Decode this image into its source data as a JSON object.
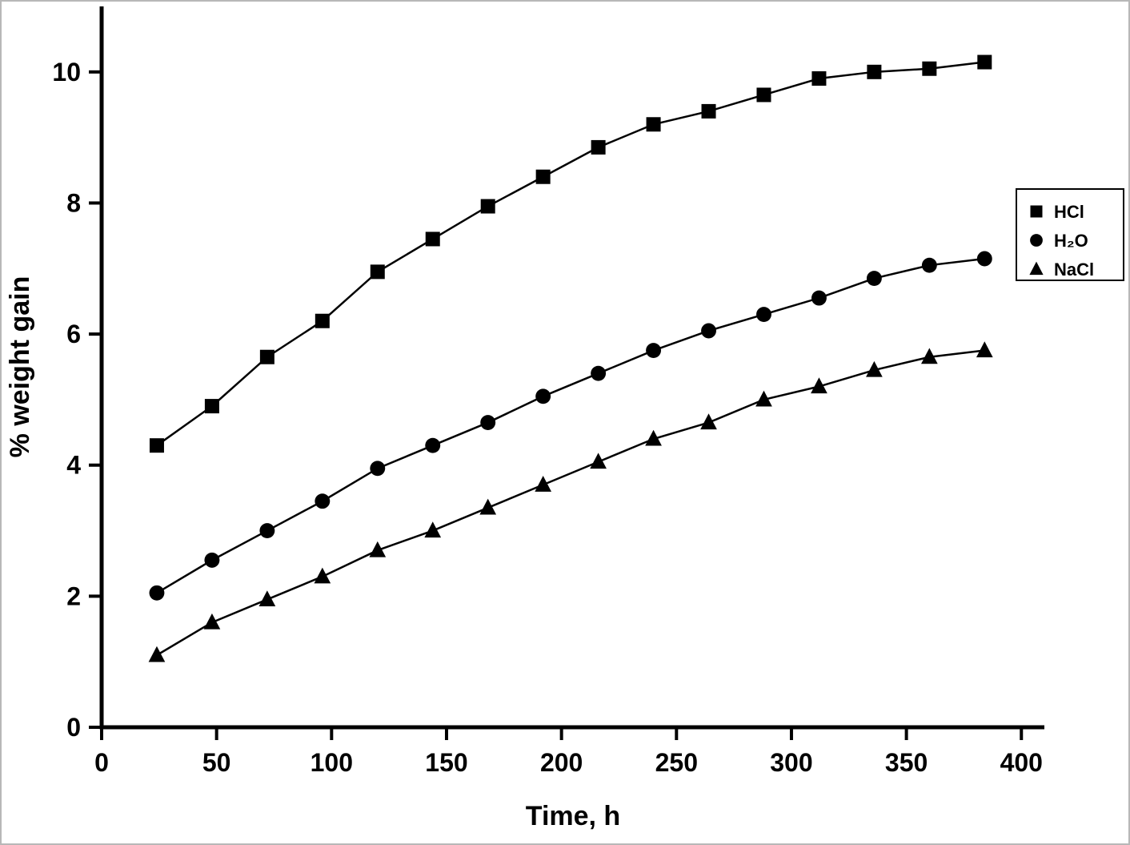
{
  "chart_data": {
    "type": "line",
    "title": "",
    "xlabel": "Time, h",
    "ylabel": "% weight gain",
    "xlim": [
      0,
      410
    ],
    "ylim": [
      0,
      11
    ],
    "xticks": [
      0,
      50,
      100,
      150,
      200,
      250,
      300,
      350,
      400
    ],
    "yticks": [
      0,
      2,
      4,
      6,
      8,
      10
    ],
    "grid": false,
    "legend_position": "right",
    "line_color": "#000000",
    "background_color": "#ffffff",
    "x": [
      24,
      48,
      72,
      96,
      120,
      144,
      168,
      192,
      216,
      240,
      264,
      288,
      312,
      336,
      360,
      384
    ],
    "series": [
      {
        "name": "HCl",
        "marker": "square",
        "values": [
          4.3,
          4.9,
          5.65,
          6.2,
          6.95,
          7.45,
          7.95,
          8.4,
          8.85,
          9.2,
          9.4,
          9.65,
          9.9,
          10.0,
          10.05,
          10.15
        ]
      },
      {
        "name": "H₂O",
        "marker": "circle",
        "values": [
          2.05,
          2.55,
          3.0,
          3.45,
          3.95,
          4.3,
          4.65,
          5.05,
          5.4,
          5.75,
          6.05,
          6.3,
          6.55,
          6.85,
          7.05,
          7.15
        ]
      },
      {
        "name": "NaCl",
        "marker": "triangle",
        "values": [
          1.1,
          1.6,
          1.95,
          2.3,
          2.7,
          3.0,
          3.35,
          3.7,
          4.05,
          4.4,
          4.65,
          5.0,
          5.2,
          5.45,
          5.65,
          5.75
        ]
      }
    ]
  }
}
